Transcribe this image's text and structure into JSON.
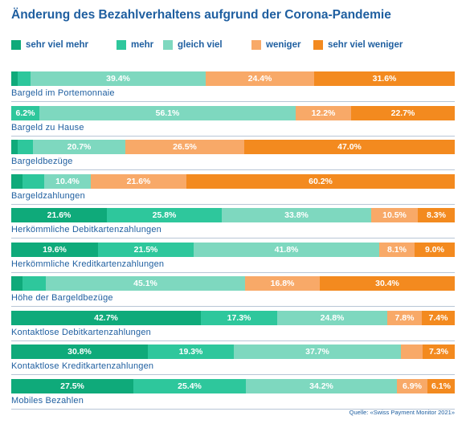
{
  "chart_data": {
    "type": "bar",
    "orientation": "horizontal",
    "stacked": true,
    "normalized": true,
    "title": "Änderung des Bezahlverhaltens aufgrund der Corona-Pandemie",
    "source": "Quelle: «Swiss Payment Monitor 2021»",
    "legend_position": "top",
    "series": [
      {
        "name": "sehr viel mehr",
        "color": "#0faa7a",
        "values": [
          1.5,
          0.0,
          1.5,
          2.5,
          21.6,
          19.6,
          2.5,
          42.7,
          30.8,
          27.5
        ]
      },
      {
        "name": "mehr",
        "color": "#2ec79c",
        "values": [
          2.9,
          6.2,
          3.3,
          4.9,
          25.8,
          21.5,
          5.2,
          17.3,
          19.3,
          25.4
        ]
      },
      {
        "name": "gleich viel",
        "color": "#7ed8bf",
        "values": [
          39.4,
          56.1,
          20.7,
          10.4,
          33.8,
          41.8,
          45.1,
          24.8,
          37.7,
          34.2
        ]
      },
      {
        "name": "weniger",
        "color": "#f8a968",
        "values": [
          24.4,
          12.2,
          26.5,
          21.6,
          10.5,
          8.1,
          16.8,
          7.8,
          4.9,
          6.9
        ]
      },
      {
        "name": "sehr viel weniger",
        "color": "#f38a1f",
        "values": [
          31.6,
          22.7,
          47.0,
          60.2,
          8.3,
          9.0,
          30.4,
          7.4,
          7.3,
          6.1
        ]
      }
    ],
    "data_labels": [
      [
        "",
        "",
        "39.4%",
        "24.4%",
        "31.6%"
      ],
      [
        "",
        "6.2%",
        "56.1%",
        "12.2%",
        "22.7%"
      ],
      [
        "",
        "",
        "20.7%",
        "26.5%",
        "47.0%"
      ],
      [
        "",
        "",
        "10.4%",
        "21.6%",
        "60.2%"
      ],
      [
        "21.6%",
        "25.8%",
        "33.8%",
        "10.5%",
        "8.3%"
      ],
      [
        "19.6%",
        "21.5%",
        "41.8%",
        "8.1%",
        "9.0%"
      ],
      [
        "",
        "",
        "45.1%",
        "16.8%",
        "30.4%"
      ],
      [
        "42.7%",
        "17.3%",
        "24.8%",
        "7.8%",
        "7.4%"
      ],
      [
        "30.8%",
        "19.3%",
        "37.7%",
        "",
        "7.3%"
      ],
      [
        "27.5%",
        "25.4%",
        "34.2%",
        "6.9%",
        "6.1%"
      ]
    ],
    "categories": [
      "Bargeld im Portemonnaie",
      "Bargeld zu Hause",
      "Bargeldbezüge",
      "Bargeldzahlungen",
      "Herkömmliche Debitkartenzahlungen",
      "Herkömmliche Kreditkartenzahlungen",
      "Höhe der Bargeldbezüge",
      "Kontaktlose Debitkartenzahlungen",
      "Kontaktlose Kreditkartenzahlungen",
      "Mobiles Bezahlen"
    ]
  }
}
